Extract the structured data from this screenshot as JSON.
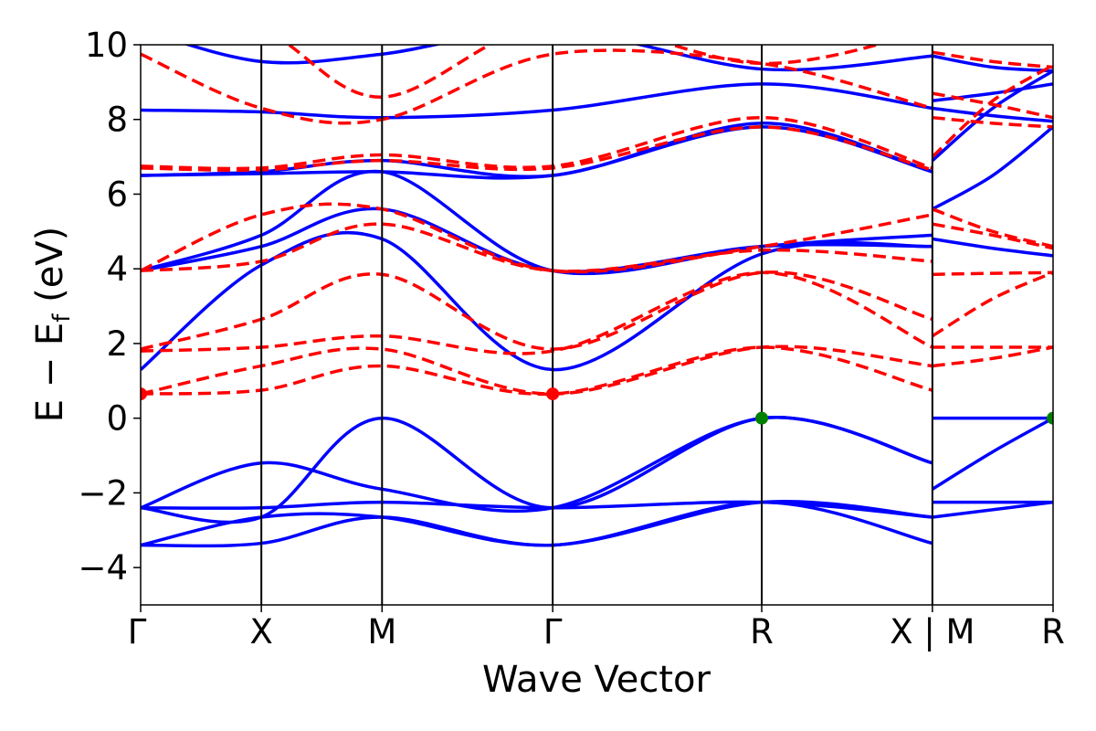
{
  "chart_data": {
    "type": "line",
    "title": "",
    "xlabel": "Wave Vector",
    "ylabel_parts": {
      "main": "E − E",
      "sub": "f",
      "unit": " (eV)"
    },
    "ylim": [
      -5,
      10
    ],
    "yticks": [
      -4,
      -2,
      0,
      2,
      4,
      6,
      8,
      10
    ],
    "ytick_labels": [
      "−4",
      "−2",
      "0",
      "2",
      "4",
      "6",
      "8",
      "10"
    ],
    "grid": false,
    "legend": "none",
    "kpoints": [
      {
        "label": "Γ",
        "x": 0.0
      },
      {
        "label": "X",
        "x": 0.5
      },
      {
        "label": "M",
        "x": 1.0
      },
      {
        "label": "Γ",
        "x": 1.707
      },
      {
        "label": "R",
        "x": 2.573
      },
      {
        "label": "X | M",
        "x": 3.28
      },
      {
        "label": "R",
        "x": 3.78
      }
    ],
    "xlim": [
      0,
      3.78
    ],
    "series_colors": {
      "valence_conduction": "#0000ff",
      "spin_dashed": "#ff0000",
      "vbm_marker": "#008000",
      "cbm_marker": "#ff0000"
    },
    "series": [
      {
        "style": "solid",
        "color": "#0000ff",
        "points": [
          [
            0,
            -3.4
          ],
          [
            0.5,
            -3.35
          ],
          [
            1.0,
            -2.65
          ],
          [
            1.707,
            -3.4
          ],
          [
            2.573,
            -2.25
          ],
          [
            3.28,
            -3.35
          ]
        ]
      },
      {
        "style": "solid",
        "color": "#0000ff",
        "points": [
          [
            0,
            -3.4
          ],
          [
            0.5,
            -2.65
          ],
          [
            1.0,
            -2.65
          ],
          [
            1.707,
            -3.4
          ],
          [
            2.573,
            -2.25
          ],
          [
            3.28,
            -2.65
          ]
        ]
      },
      {
        "style": "solid",
        "color": "#0000ff",
        "points": [
          [
            0,
            -2.4
          ],
          [
            0.5,
            -2.4
          ],
          [
            1.0,
            -2.25
          ],
          [
            1.707,
            -2.4
          ],
          [
            2.573,
            -2.25
          ],
          [
            3.28,
            -2.65
          ]
        ]
      },
      {
        "style": "solid",
        "color": "#0000ff",
        "points": [
          [
            0,
            -2.4
          ],
          [
            0.5,
            -1.2
          ],
          [
            1.0,
            -1.9
          ],
          [
            1.707,
            -2.4
          ],
          [
            2.573,
            -0.0
          ],
          [
            3.28,
            -1.2
          ]
        ]
      },
      {
        "style": "solid",
        "color": "#0000ff",
        "points": [
          [
            0,
            -2.4
          ],
          [
            0.5,
            -2.65
          ],
          [
            1.0,
            0.0
          ],
          [
            1.707,
            -2.4
          ],
          [
            2.573,
            0.0
          ],
          [
            3.28,
            -1.2
          ]
        ]
      },
      {
        "style": "solid",
        "color": "#0000ff",
        "points": [
          [
            3.28,
            -2.65
          ],
          [
            3.78,
            -2.25
          ]
        ]
      },
      {
        "style": "solid",
        "color": "#0000ff",
        "points": [
          [
            3.28,
            -2.25
          ],
          [
            3.78,
            -2.25
          ]
        ]
      },
      {
        "style": "solid",
        "color": "#0000ff",
        "points": [
          [
            3.28,
            -1.9
          ],
          [
            3.53,
            -0.9
          ],
          [
            3.78,
            0.0
          ]
        ]
      },
      {
        "style": "solid",
        "color": "#0000ff",
        "points": [
          [
            3.28,
            0.0
          ],
          [
            3.78,
            0.0
          ]
        ]
      },
      {
        "style": "solid",
        "color": "#0000ff",
        "points": [
          [
            0,
            1.3
          ],
          [
            0.5,
            4.1
          ],
          [
            1.0,
            4.8
          ],
          [
            1.707,
            1.3
          ],
          [
            2.573,
            4.4
          ],
          [
            3.28,
            4.6
          ]
        ]
      },
      {
        "style": "solid",
        "color": "#0000ff",
        "points": [
          [
            0,
            3.95
          ],
          [
            0.5,
            4.6
          ],
          [
            1.0,
            5.6
          ],
          [
            1.707,
            3.95
          ],
          [
            2.573,
            4.6
          ],
          [
            3.28,
            4.6
          ]
        ]
      },
      {
        "style": "solid",
        "color": "#0000ff",
        "points": [
          [
            0,
            3.95
          ],
          [
            0.5,
            4.9
          ],
          [
            1.0,
            6.6
          ],
          [
            1.707,
            3.95
          ],
          [
            2.573,
            4.6
          ],
          [
            3.28,
            4.9
          ]
        ]
      },
      {
        "style": "solid",
        "color": "#0000ff",
        "points": [
          [
            0,
            6.5
          ],
          [
            0.5,
            6.55
          ],
          [
            1.0,
            6.6
          ],
          [
            1.707,
            6.5
          ],
          [
            2.573,
            7.8
          ],
          [
            3.28,
            6.6
          ]
        ]
      },
      {
        "style": "solid",
        "color": "#0000ff",
        "points": [
          [
            0,
            6.5
          ],
          [
            0.5,
            6.6
          ],
          [
            1.0,
            6.9
          ],
          [
            1.707,
            6.5
          ],
          [
            2.573,
            7.9
          ],
          [
            3.28,
            6.6
          ]
        ]
      },
      {
        "style": "solid",
        "color": "#0000ff",
        "points": [
          [
            0,
            8.25
          ],
          [
            0.5,
            8.2
          ],
          [
            1.0,
            8.05
          ],
          [
            1.707,
            8.25
          ],
          [
            2.573,
            8.95
          ],
          [
            3.28,
            8.3
          ]
        ]
      },
      {
        "style": "solid",
        "color": "#0000ff",
        "points": [
          [
            0,
            10.4
          ],
          [
            0.5,
            9.55
          ],
          [
            1.0,
            9.75
          ],
          [
            1.707,
            10.4
          ],
          [
            2.573,
            9.35
          ],
          [
            3.28,
            9.7
          ]
        ]
      },
      {
        "style": "solid",
        "color": "#0000ff",
        "points": [
          [
            3.28,
            4.8
          ],
          [
            3.53,
            4.55
          ],
          [
            3.78,
            4.35
          ]
        ]
      },
      {
        "style": "solid",
        "color": "#0000ff",
        "points": [
          [
            3.28,
            5.6
          ],
          [
            3.53,
            6.5
          ],
          [
            3.78,
            7.8
          ]
        ]
      },
      {
        "style": "solid",
        "color": "#0000ff",
        "points": [
          [
            3.28,
            6.9
          ],
          [
            3.53,
            8.3
          ],
          [
            3.78,
            9.3
          ]
        ]
      },
      {
        "style": "solid",
        "color": "#0000ff",
        "points": [
          [
            3.28,
            8.3
          ],
          [
            3.53,
            8.1
          ],
          [
            3.78,
            7.95
          ]
        ]
      },
      {
        "style": "solid",
        "color": "#0000ff",
        "points": [
          [
            3.28,
            8.5
          ],
          [
            3.53,
            8.7
          ],
          [
            3.78,
            8.95
          ]
        ]
      },
      {
        "style": "solid",
        "color": "#0000ff",
        "points": [
          [
            3.28,
            9.7
          ],
          [
            3.53,
            9.4
          ],
          [
            3.78,
            9.3
          ]
        ]
      },
      {
        "style": "dashed",
        "color": "#ff0000",
        "points": [
          [
            0,
            0.65
          ],
          [
            0.5,
            0.75
          ],
          [
            1.0,
            1.4
          ],
          [
            1.707,
            0.65
          ],
          [
            2.573,
            1.9
          ],
          [
            3.28,
            0.75
          ]
        ]
      },
      {
        "style": "dashed",
        "color": "#ff0000",
        "points": [
          [
            0,
            0.65
          ],
          [
            0.5,
            1.4
          ],
          [
            1.0,
            1.85
          ],
          [
            1.707,
            0.65
          ],
          [
            2.573,
            1.9
          ],
          [
            3.28,
            1.4
          ]
        ]
      },
      {
        "style": "dashed",
        "color": "#ff0000",
        "points": [
          [
            0,
            1.8
          ],
          [
            0.5,
            1.9
          ],
          [
            1.0,
            2.2
          ],
          [
            1.707,
            1.8
          ],
          [
            2.573,
            3.9
          ],
          [
            3.28,
            1.9
          ]
        ]
      },
      {
        "style": "dashed",
        "color": "#ff0000",
        "points": [
          [
            0,
            1.85
          ],
          [
            0.5,
            2.65
          ],
          [
            1.0,
            3.85
          ],
          [
            1.707,
            1.85
          ],
          [
            2.573,
            3.9
          ],
          [
            3.28,
            2.65
          ]
        ]
      },
      {
        "style": "dashed",
        "color": "#ff0000",
        "points": [
          [
            0,
            3.95
          ],
          [
            0.5,
            4.2
          ],
          [
            1.0,
            5.2
          ],
          [
            1.707,
            3.95
          ],
          [
            2.573,
            4.5
          ],
          [
            3.28,
            4.2
          ]
        ]
      },
      {
        "style": "dashed",
        "color": "#ff0000",
        "points": [
          [
            0,
            3.95
          ],
          [
            0.5,
            5.45
          ],
          [
            1.0,
            5.6
          ],
          [
            1.707,
            3.95
          ],
          [
            2.573,
            4.6
          ],
          [
            3.28,
            5.45
          ]
        ]
      },
      {
        "style": "dashed",
        "color": "#ff0000",
        "points": [
          [
            0,
            6.7
          ],
          [
            0.5,
            6.65
          ],
          [
            1.0,
            6.9
          ],
          [
            1.707,
            6.7
          ],
          [
            2.573,
            7.8
          ],
          [
            3.28,
            6.65
          ]
        ]
      },
      {
        "style": "dashed",
        "color": "#ff0000",
        "points": [
          [
            0,
            6.75
          ],
          [
            0.5,
            6.7
          ],
          [
            1.0,
            7.05
          ],
          [
            1.707,
            6.75
          ],
          [
            2.573,
            8.05
          ],
          [
            3.28,
            6.7
          ]
        ]
      },
      {
        "style": "dashed",
        "color": "#ff0000",
        "points": [
          [
            0,
            9.75
          ],
          [
            0.5,
            8.3
          ],
          [
            1.0,
            8.0
          ],
          [
            1.707,
            9.75
          ],
          [
            2.573,
            9.5
          ],
          [
            3.28,
            8.3
          ]
        ]
      },
      {
        "style": "dashed",
        "color": "#ff0000",
        "points": [
          [
            0,
            10.6
          ],
          [
            0.5,
            10.4
          ],
          [
            1.0,
            8.6
          ],
          [
            1.707,
            10.6
          ],
          [
            2.573,
            9.5
          ],
          [
            3.28,
            10.4
          ]
        ]
      },
      {
        "style": "dashed",
        "color": "#ff0000",
        "points": [
          [
            3.28,
            1.9
          ],
          [
            3.53,
            1.9
          ],
          [
            3.78,
            1.9
          ]
        ]
      },
      {
        "style": "dashed",
        "color": "#ff0000",
        "points": [
          [
            3.28,
            1.4
          ],
          [
            3.53,
            1.6
          ],
          [
            3.78,
            1.9
          ]
        ]
      },
      {
        "style": "dashed",
        "color": "#ff0000",
        "points": [
          [
            3.28,
            2.2
          ],
          [
            3.53,
            3.2
          ],
          [
            3.78,
            3.9
          ]
        ]
      },
      {
        "style": "dashed",
        "color": "#ff0000",
        "points": [
          [
            3.28,
            3.85
          ],
          [
            3.53,
            3.88
          ],
          [
            3.78,
            3.9
          ]
        ]
      },
      {
        "style": "dashed",
        "color": "#ff0000",
        "points": [
          [
            3.28,
            5.2
          ],
          [
            3.53,
            4.9
          ],
          [
            3.78,
            4.55
          ]
        ]
      },
      {
        "style": "dashed",
        "color": "#ff0000",
        "points": [
          [
            3.28,
            5.6
          ],
          [
            3.53,
            5.0
          ],
          [
            3.78,
            4.6
          ]
        ]
      },
      {
        "style": "dashed",
        "color": "#ff0000",
        "points": [
          [
            3.28,
            7.0
          ],
          [
            3.53,
            8.5
          ],
          [
            3.78,
            9.45
          ]
        ]
      },
      {
        "style": "dashed",
        "color": "#ff0000",
        "points": [
          [
            3.28,
            8.05
          ],
          [
            3.53,
            7.9
          ],
          [
            3.78,
            7.8
          ]
        ]
      },
      {
        "style": "dashed",
        "color": "#ff0000",
        "points": [
          [
            3.28,
            8.7
          ],
          [
            3.53,
            8.4
          ],
          [
            3.78,
            8.05
          ]
        ]
      },
      {
        "style": "dashed",
        "color": "#ff0000",
        "points": [
          [
            3.28,
            9.8
          ],
          [
            3.53,
            9.55
          ],
          [
            3.78,
            9.4
          ]
        ]
      }
    ],
    "markers": [
      {
        "name": "cbm-marker",
        "x": 0.0,
        "y": 0.65,
        "color": "#ff0000"
      },
      {
        "name": "cbm-marker",
        "x": 1.707,
        "y": 0.65,
        "color": "#ff0000"
      },
      {
        "name": "vbm-marker",
        "x": 2.573,
        "y": 0.0,
        "color": "#008000"
      },
      {
        "name": "vbm-marker",
        "x": 3.78,
        "y": 0.0,
        "color": "#008000"
      }
    ]
  }
}
